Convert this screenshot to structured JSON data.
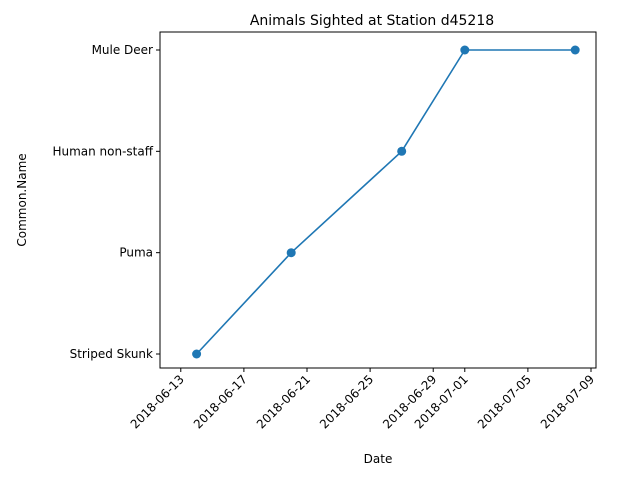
{
  "chart_data": {
    "type": "line",
    "title": "Animals Sighted at Station d45218",
    "xlabel": "Date",
    "ylabel": "Common.Name",
    "categories_y": [
      "Striped Skunk",
      "Puma",
      "Human non-staff",
      "Mule Deer"
    ],
    "x_ticks": [
      "2018-06-13",
      "2018-06-17",
      "2018-06-21",
      "2018-06-25",
      "2018-06-29",
      "2018-07-01",
      "2018-07-05",
      "2018-07-09"
    ],
    "xlim": [
      "2018-06-12",
      "2018-07-09"
    ],
    "series": [
      {
        "color": "#1f77b4",
        "marker": "circle",
        "points": [
          {
            "x": "2018-06-14",
            "y": "Striped Skunk"
          },
          {
            "x": "2018-06-20",
            "y": "Puma"
          },
          {
            "x": "2018-06-27",
            "y": "Human non-staff"
          },
          {
            "x": "2018-07-01",
            "y": "Mule Deer"
          },
          {
            "x": "2018-07-08",
            "y": "Mule Deer"
          }
        ]
      }
    ],
    "grid": false,
    "legend": "none"
  }
}
